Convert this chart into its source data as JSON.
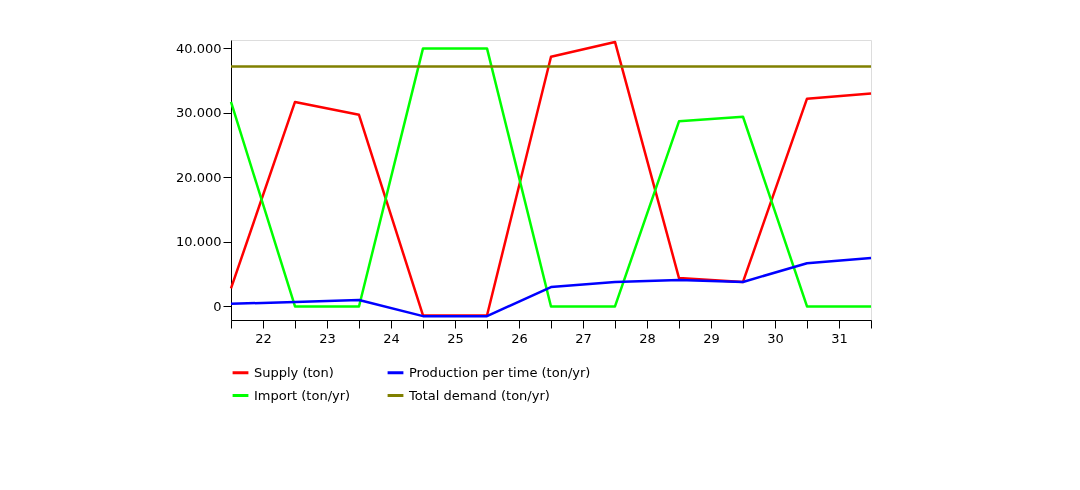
{
  "chart_data": {
    "type": "line",
    "x": [
      21.5,
      22.5,
      23.5,
      24.5,
      25.5,
      26.5,
      27.5,
      28.5,
      29.5,
      30.5,
      31.5
    ],
    "series": [
      {
        "name": "Supply (ton)",
        "color": "#ff0000",
        "values": [
          2800,
          31700,
          29700,
          -1400,
          -1400,
          38700,
          41000,
          4400,
          3800,
          32200,
          33000
        ]
      },
      {
        "name": "Import (ton/yr)",
        "color": "#00ff00",
        "values": [
          31700,
          0,
          0,
          40000,
          40000,
          0,
          0,
          28700,
          29400,
          0,
          0
        ]
      },
      {
        "name": "Production per time (ton/yr)",
        "color": "#0000ff",
        "values": [
          400,
          700,
          1000,
          -1500,
          -1500,
          3000,
          3800,
          4100,
          3800,
          6700,
          7500
        ]
      },
      {
        "name": "Total demand (ton/yr)",
        "color": "#808000",
        "values": [
          37200,
          37200,
          37200,
          37200,
          37200,
          37200,
          37200,
          37200,
          37200,
          37200,
          37200
        ]
      }
    ],
    "xlim": [
      21.5,
      31.5
    ],
    "xticks": [
      {
        "value": 21.5,
        "label": null
      },
      22,
      {
        "value": 22.5,
        "label": null
      },
      23,
      {
        "value": 23.5,
        "label": null
      },
      24,
      {
        "value": 24.5,
        "label": null
      },
      25,
      {
        "value": 25.5,
        "label": null
      },
      26,
      {
        "value": 26.5,
        "label": null
      },
      27,
      {
        "value": 27.5,
        "label": null
      },
      28,
      {
        "value": 28.5,
        "label": null
      },
      29,
      {
        "value": 29.5,
        "label": null
      },
      30,
      {
        "value": 30.5,
        "label": null
      },
      31,
      {
        "value": 31.5,
        "label": null
      }
    ],
    "ylim": [
      -2100,
      41300
    ],
    "yticks": [
      {
        "value": 0,
        "label": "0"
      },
      {
        "value": 10000,
        "label": "10.000"
      },
      {
        "value": 20000,
        "label": "20.000"
      },
      {
        "value": 30000,
        "label": "30.000"
      },
      {
        "value": 40000,
        "label": "40.000"
      }
    ],
    "grid": false,
    "legend": "bottom",
    "marker": "none",
    "line_style": "solid"
  }
}
